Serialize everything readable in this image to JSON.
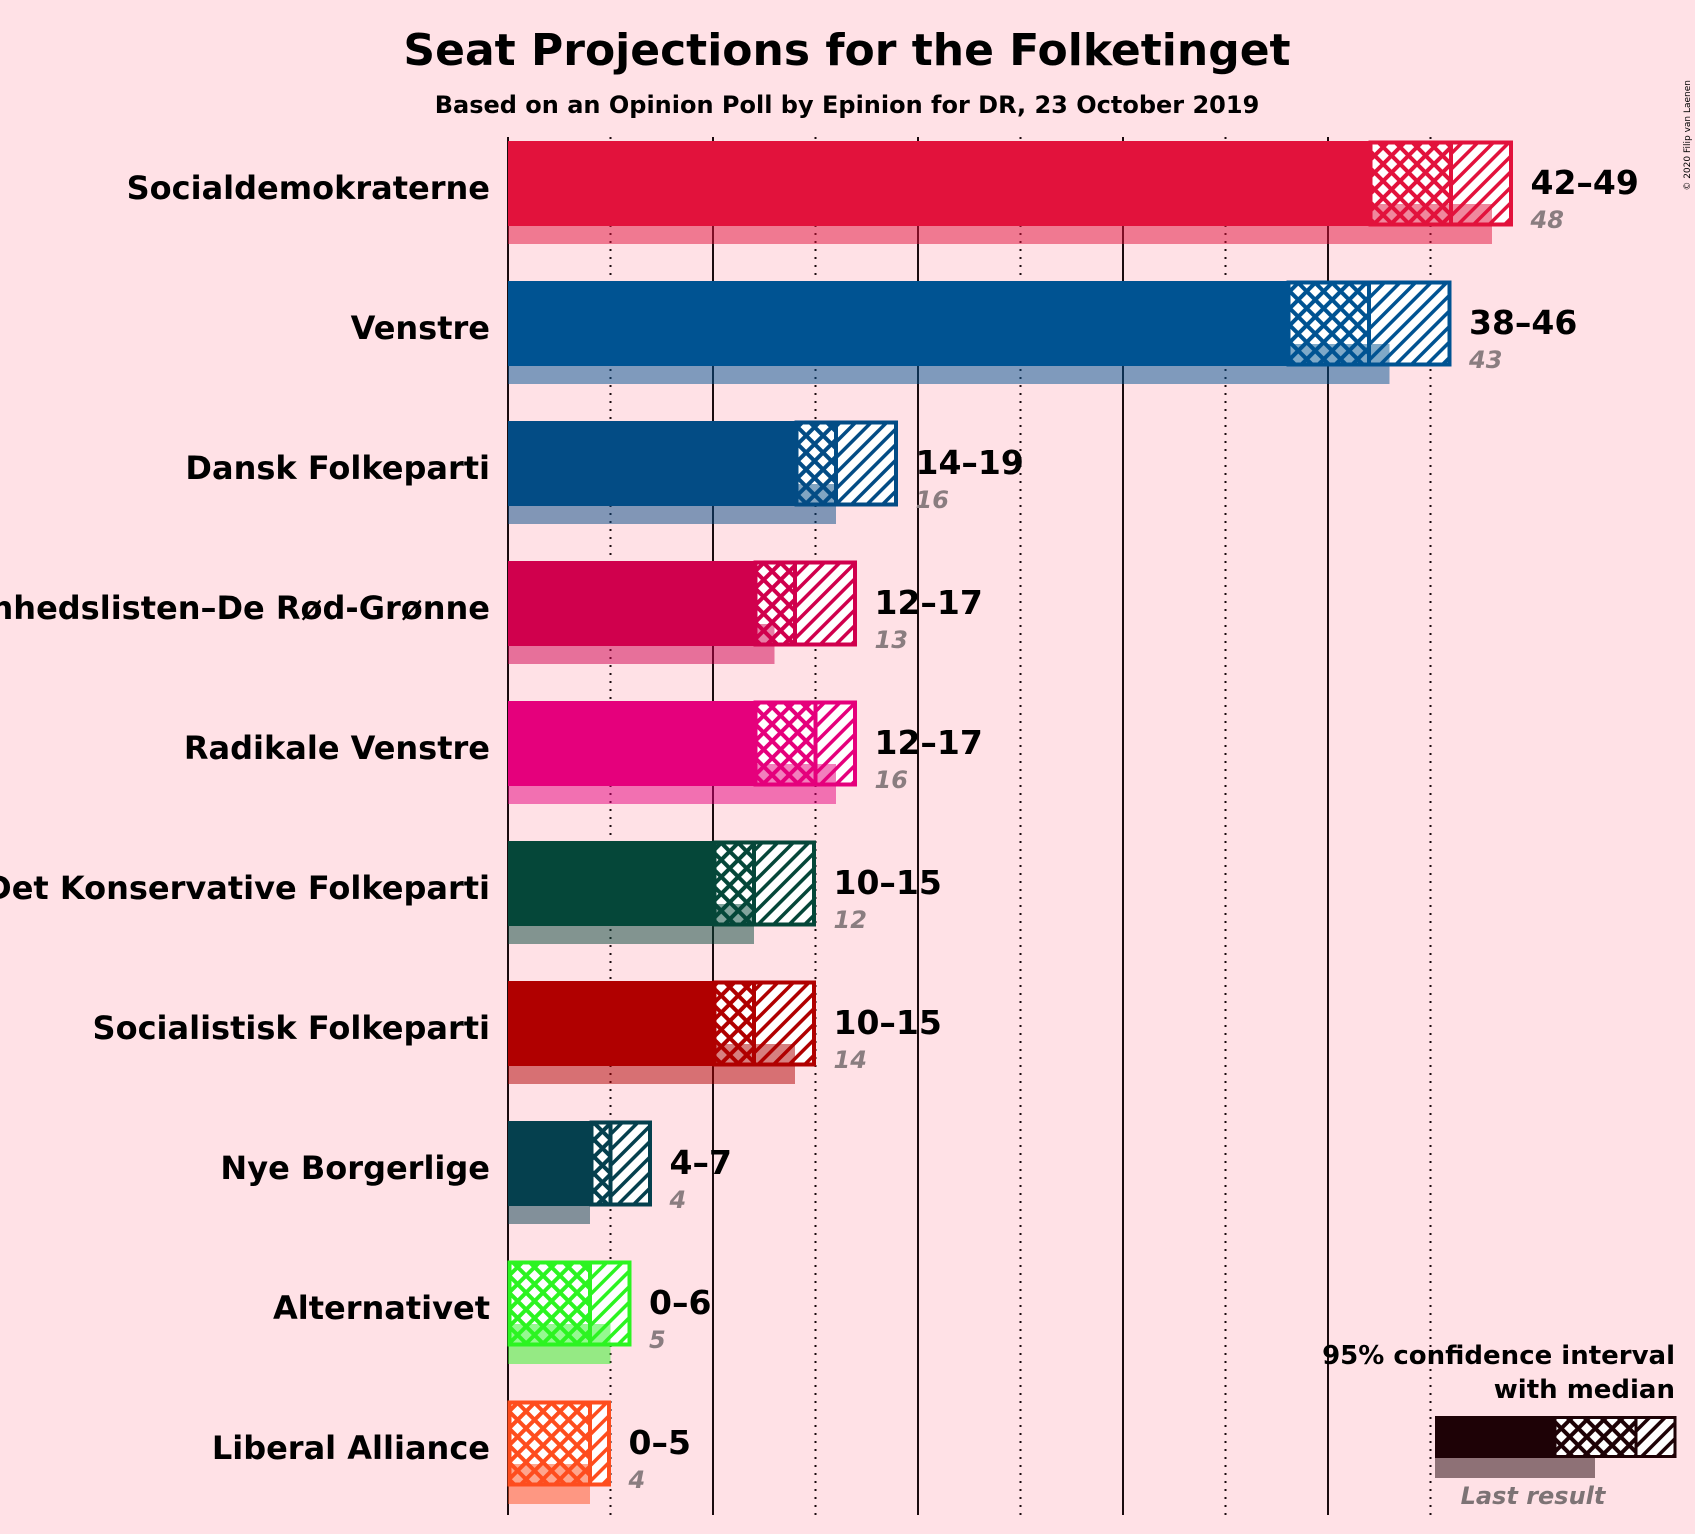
{
  "title": "Seat Projections for the Folketinget",
  "subtitle": "Based on an Opinion Poll by Epinion for DR, 23 October 2019",
  "copyright": "© 2020 Filip van Laenen",
  "legend": {
    "line1": "95% confidence interval",
    "line2": "with median",
    "last_result": "Last result",
    "color": "#1e0206"
  },
  "chart_data": {
    "type": "bar",
    "orientation": "horizontal",
    "title": "Seat Projections for the Folketinget",
    "subtitle": "Based on an Opinion Poll by Epinion for DR, 23 October 2019",
    "xlim": [
      0,
      49
    ],
    "grid": "vertical lines every 5 seats (solid) with dotted lines at odd multiples of 5",
    "legend_position": "bottom-right",
    "categories": [
      "Socialdemokraterne",
      "Venstre",
      "Dansk Folkeparti",
      "Enhedslisten–De Rød-Grønne",
      "Radikale Venstre",
      "Det Konservative Folkeparti",
      "Socialistisk Folkeparti",
      "Nye Borgerlige",
      "Alternativet",
      "Liberal Alliance"
    ],
    "series": [
      {
        "name": "95% confidence interval",
        "parties": [
          {
            "party": "Socialdemokraterne",
            "low": 42,
            "median": 46,
            "high": 49,
            "range_label": "42–49",
            "last": 48,
            "last_label": "48",
            "color": "#e2123c"
          },
          {
            "party": "Venstre",
            "low": 38,
            "median": 42,
            "high": 46,
            "range_label": "38–46",
            "last": 43,
            "last_label": "43",
            "color": "#005392"
          },
          {
            "party": "Dansk Folkeparti",
            "low": 14,
            "median": 16,
            "high": 19,
            "range_label": "14–19",
            "last": 16,
            "last_label": "16",
            "color": "#034c85"
          },
          {
            "party": "Enhedslisten–De Rød-Grønne",
            "low": 12,
            "median": 14,
            "high": 17,
            "range_label": "12–17",
            "last": 13,
            "last_label": "13",
            "color": "#d0004d"
          },
          {
            "party": "Radikale Venstre",
            "low": 12,
            "median": 15,
            "high": 17,
            "range_label": "12–17",
            "last": 16,
            "last_label": "16",
            "color": "#e5007c"
          },
          {
            "party": "Det Konservative Folkeparti",
            "low": 10,
            "median": 12,
            "high": 15,
            "range_label": "10–15",
            "last": 12,
            "last_label": "12",
            "color": "#054739"
          },
          {
            "party": "Socialistisk Folkeparti",
            "low": 10,
            "median": 12,
            "high": 15,
            "range_label": "10–15",
            "last": 14,
            "last_label": "14",
            "color": "#b00000"
          },
          {
            "party": "Nye Borgerlige",
            "low": 4,
            "median": 5,
            "high": 7,
            "range_label": "4–7",
            "last": 4,
            "last_label": "4",
            "color": "#05404e"
          },
          {
            "party": "Alternativet",
            "low": 0,
            "median": 4,
            "high": 6,
            "range_label": "0–6",
            "last": 5,
            "last_label": "5",
            "color": "#2cf421"
          },
          {
            "party": "Liberal Alliance",
            "low": 0,
            "median": 4,
            "high": 5,
            "range_label": "0–5",
            "last": 4,
            "last_label": "4",
            "color": "#fe4d1e"
          }
        ]
      }
    ]
  }
}
